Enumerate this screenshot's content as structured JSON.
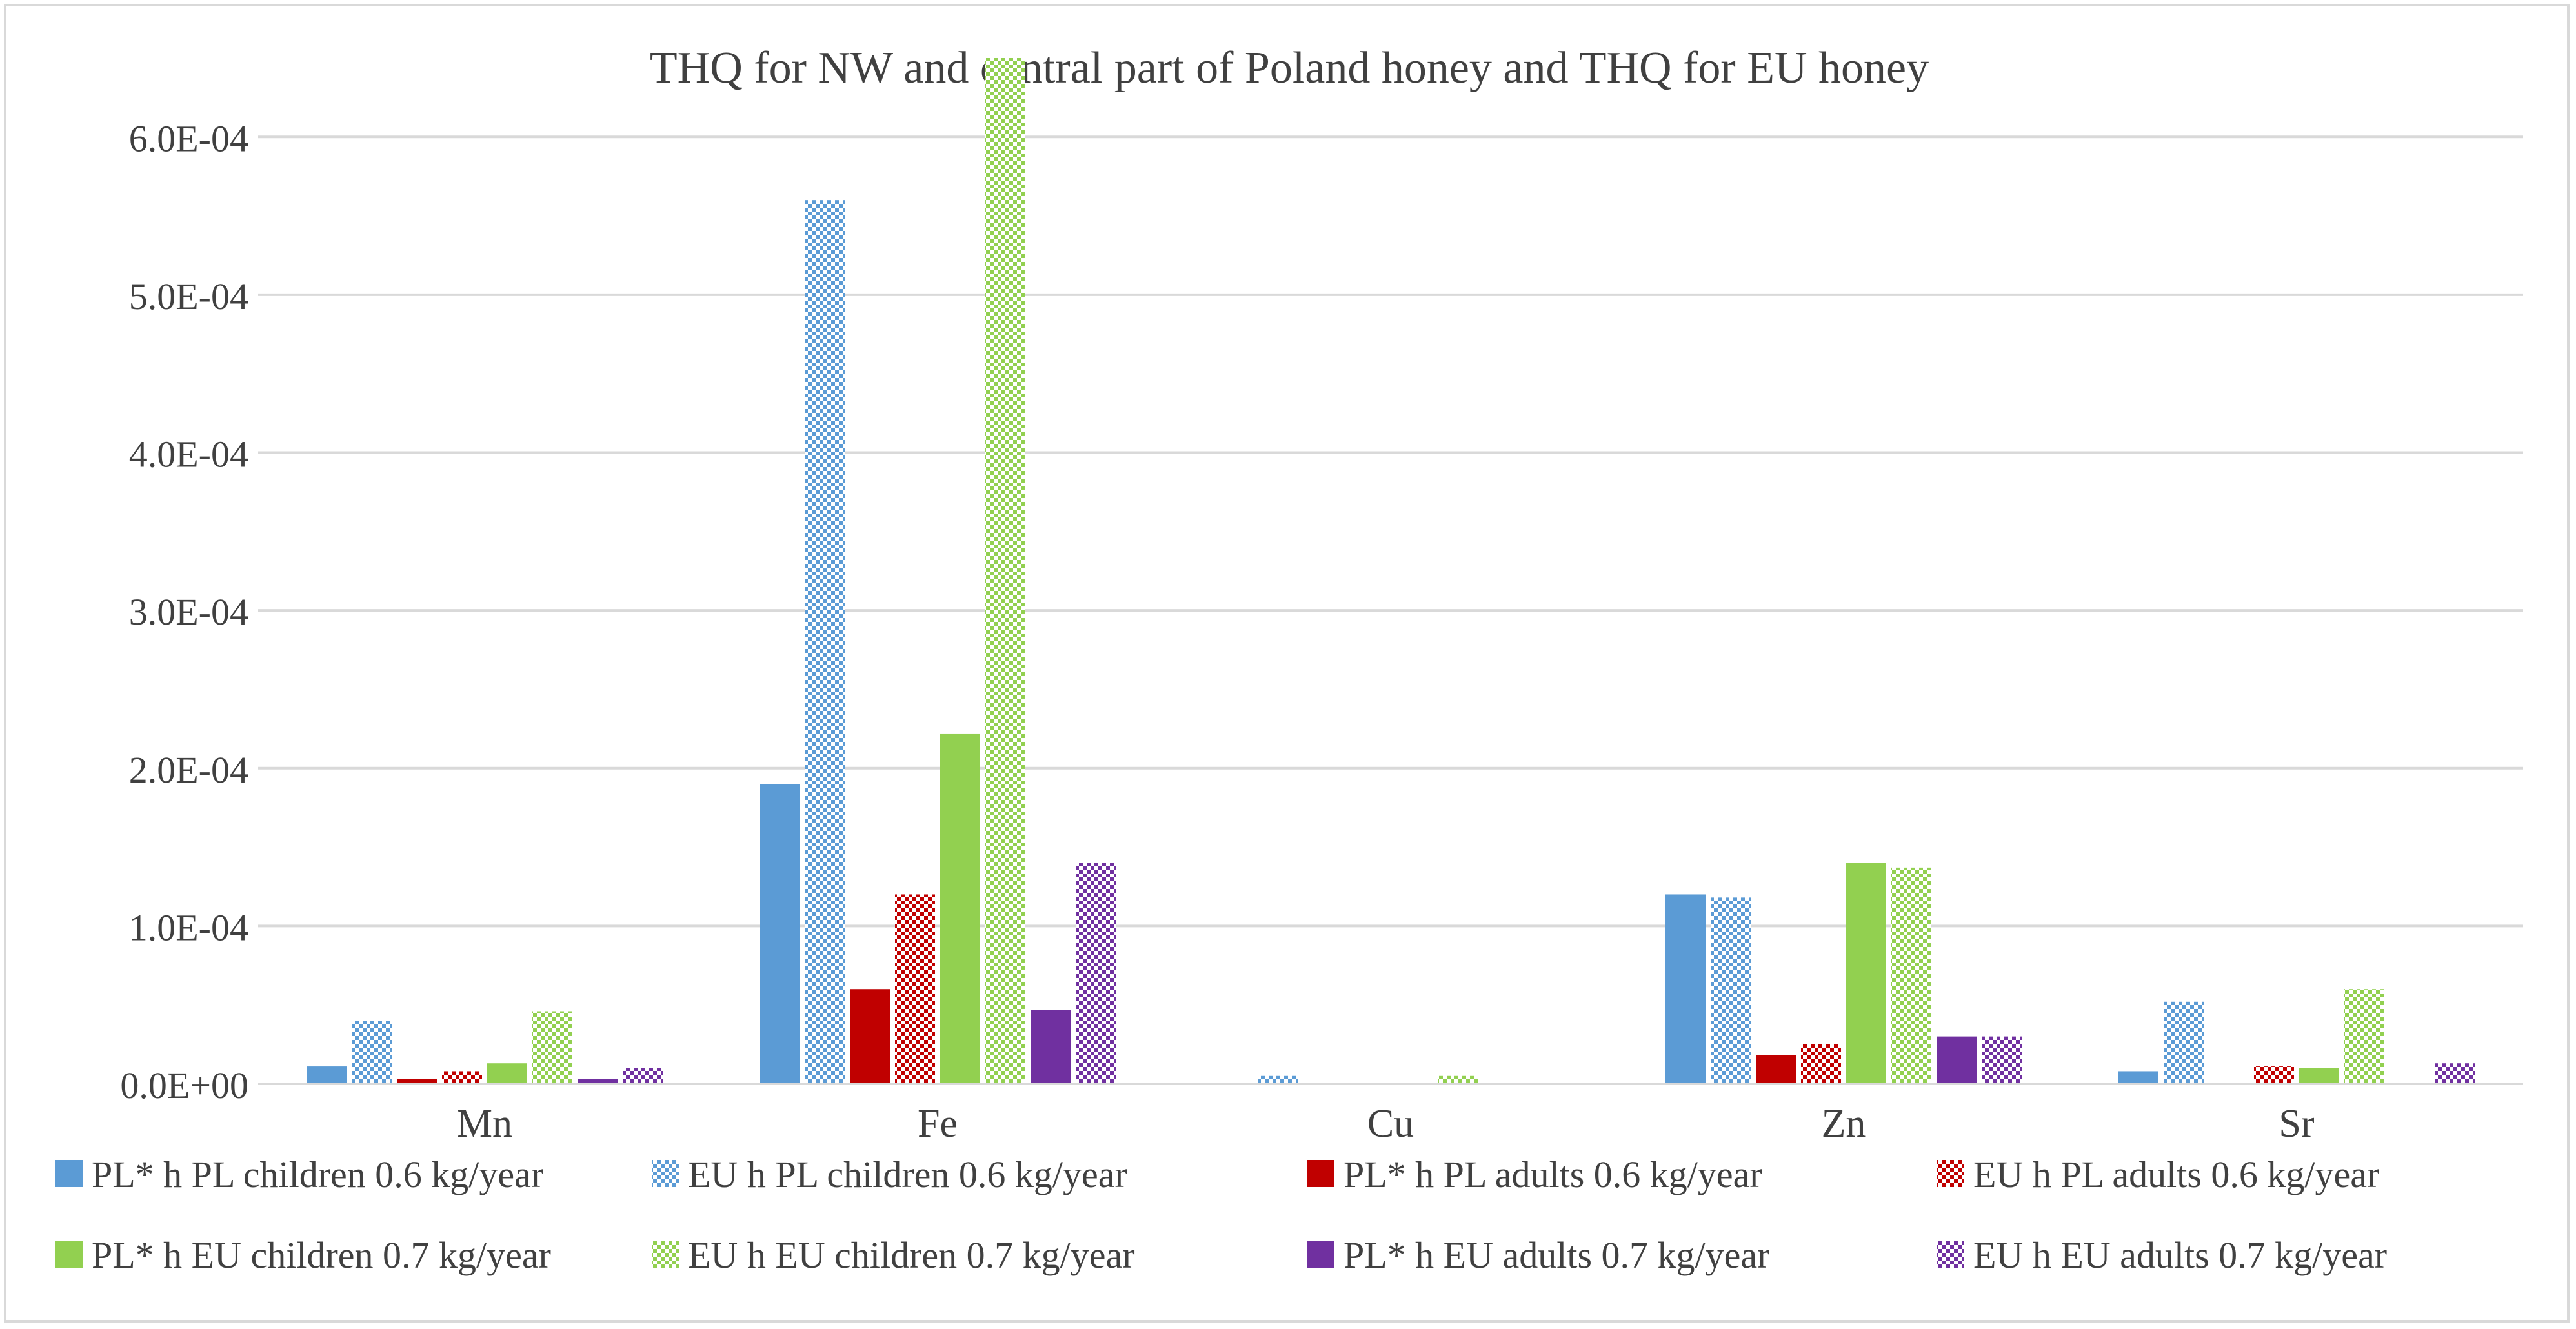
{
  "chart_data": {
    "type": "bar",
    "title": "THQ for NW and central part of Poland honey and THQ  for EU honey",
    "xlabel": "",
    "ylabel": "",
    "ylim": [
      0,
      0.00065
    ],
    "grid": true,
    "legend_position": "bottom",
    "categories": [
      "Mn",
      "Fe",
      "Cu",
      "Zn",
      "Sr"
    ],
    "y_ticks": [
      0,
      0.0001,
      0.0002,
      0.0003,
      0.0004,
      0.0005,
      0.0006
    ],
    "y_tick_labels": [
      "0.0E+00",
      "1.0E-04",
      "2.0E-04",
      "3.0E-04",
      "4.0E-04",
      "5.0E-04",
      "6.0E-04"
    ],
    "series": [
      {
        "name": "PL* h PL children 0.6 kg/year",
        "color": "#5b9bd5",
        "pattern": "solid",
        "values": [
          1.1e-05,
          0.00019,
          0,
          0.00012,
          8e-06
        ]
      },
      {
        "name": "EU h PL children 0.6 kg/year",
        "color": "#5b9bd5",
        "pattern": "checker",
        "values": [
          4e-05,
          0.00056,
          5e-06,
          0.000118,
          5.2e-05
        ]
      },
      {
        "name": "PL* h PL adults 0.6 kg/year",
        "color": "#c00000",
        "pattern": "solid",
        "values": [
          3e-06,
          6e-05,
          0,
          1.8e-05,
          0
        ]
      },
      {
        "name": "EU h PL adults 0.6 kg/year",
        "color": "#c00000",
        "pattern": "checker",
        "values": [
          8e-06,
          0.00012,
          0,
          2.5e-05,
          1.1e-05
        ]
      },
      {
        "name": "PL* h EU children 0.7 kg/year",
        "color": "#92d050",
        "pattern": "solid",
        "values": [
          1.3e-05,
          0.000222,
          0,
          0.00014,
          1e-05
        ]
      },
      {
        "name": "EU h EU children 0.7 kg/year",
        "color": "#92d050",
        "pattern": "checker",
        "values": [
          4.6e-05,
          0.00065,
          5e-06,
          0.000137,
          6e-05
        ]
      },
      {
        "name": "PL* h EU adults 0.7 kg/year",
        "color": "#7030a0",
        "pattern": "solid",
        "values": [
          3e-06,
          4.7e-05,
          0,
          3e-05,
          0
        ]
      },
      {
        "name": "EU h EU adults 0.7 kg/year",
        "color": "#7030a0",
        "pattern": "checker",
        "values": [
          1e-05,
          0.00014,
          0,
          3e-05,
          1.3e-05
        ]
      }
    ]
  }
}
